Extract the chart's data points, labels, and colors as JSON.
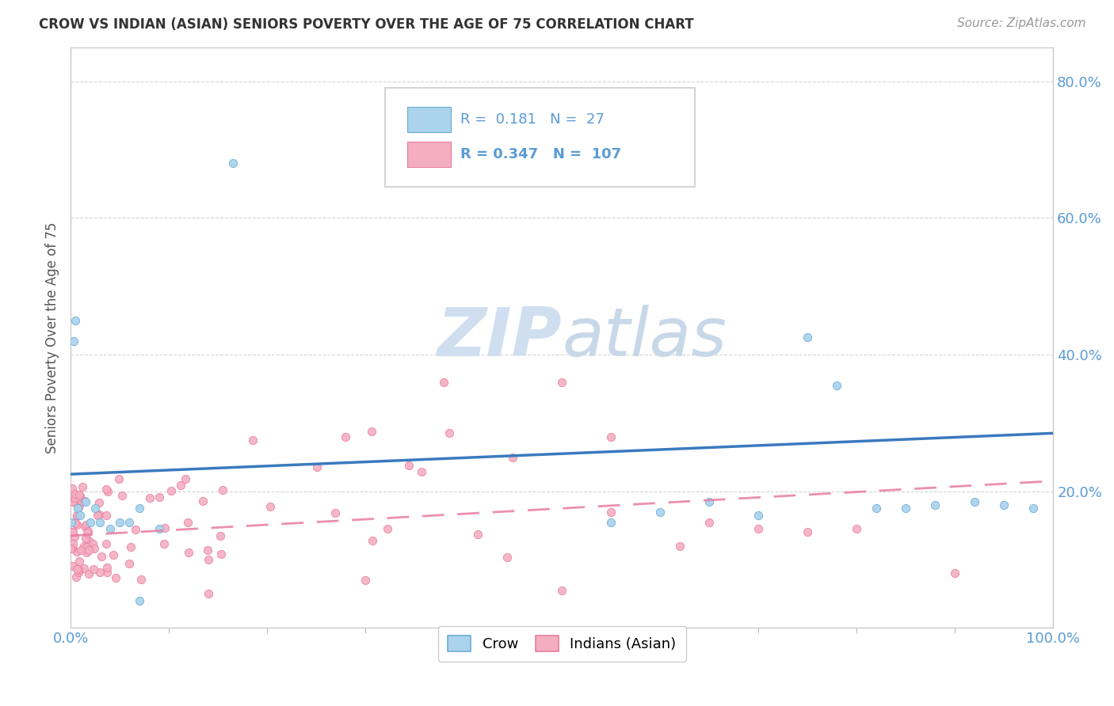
{
  "title": "CROW VS INDIAN (ASIAN) SENIORS POVERTY OVER THE AGE OF 75 CORRELATION CHART",
  "source": "Source: ZipAtlas.com",
  "ylabel": "Seniors Poverty Over the Age of 75",
  "xlim": [
    0,
    1.0
  ],
  "ylim": [
    0,
    0.85
  ],
  "crow_R": 0.181,
  "crow_N": 27,
  "indian_R": 0.347,
  "indian_N": 107,
  "crow_color": "#acd3ec",
  "crow_edge_color": "#6aaed6",
  "indian_color": "#f4aec0",
  "indian_edge_color": "#e87ca0",
  "crow_line_color": "#3a7abf",
  "indian_line_color": "#e87ca0",
  "watermark_color": "#d8e8f5",
  "background_color": "#ffffff",
  "title_color": "#333333",
  "axis_label_color": "#5b9bd5",
  "ylabel_color": "#555555",
  "source_color": "#999999"
}
